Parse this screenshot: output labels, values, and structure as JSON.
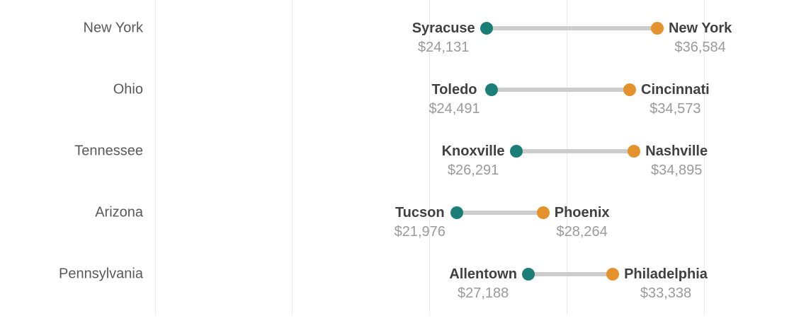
{
  "chart_data": {
    "type": "dumbbell",
    "title": "",
    "xlabel": "",
    "ylabel": "",
    "x_axis": {
      "min": 0,
      "max": 40000,
      "gridline_step": 10000,
      "gridlines_visible": true,
      "tick_labels_visible": false
    },
    "legend": {
      "visible": false
    },
    "value_prefix": "$",
    "colors": {
      "low_dot": "#1b7f77",
      "high_dot": "#e5922c",
      "connector": "#cdcdcd",
      "gridline": "#ebebeb",
      "group_label": "#59595b",
      "city_label": "#404042",
      "value_label": "#9a9a9a"
    },
    "rows": [
      {
        "group": "New York",
        "low_city": "Syracuse",
        "low_value": 24131,
        "low_value_label": "$24,131",
        "high_city": "New York",
        "high_value": 36584,
        "high_value_label": "$36,584"
      },
      {
        "group": "Ohio",
        "low_city": "Toledo",
        "low_value": 24491,
        "low_value_label": "$24,491",
        "high_city": "Cincinnati",
        "high_value": 34573,
        "high_value_label": "$34,573"
      },
      {
        "group": "Tennessee",
        "low_city": "Knoxville",
        "low_value": 26291,
        "low_value_label": "$26,291",
        "high_city": "Nashville",
        "high_value": 34895,
        "high_value_label": "$34,895"
      },
      {
        "group": "Arizona",
        "low_city": "Tucson",
        "low_value": 21976,
        "low_value_label": "$21,976",
        "high_city": "Phoenix",
        "high_value": 28264,
        "high_value_label": "$28,264"
      },
      {
        "group": "Pennsylvania",
        "low_city": "Allentown",
        "low_value": 27188,
        "low_value_label": "$27,188",
        "high_city": "Philadelphia",
        "high_value": 33338,
        "high_value_label": "$33,338"
      }
    ]
  }
}
